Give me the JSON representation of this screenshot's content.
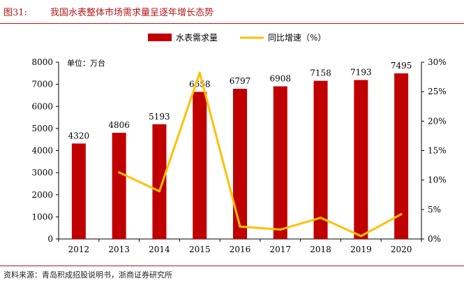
{
  "header": {
    "figure_no": "图31:",
    "title": "我国水表整体市场需求量呈逐年增长态势"
  },
  "source": "资料来源：青岛积成招股说明书，浙商证券研究所",
  "chart_data": {
    "type": "bar",
    "categories": [
      "2012",
      "2013",
      "2014",
      "2015",
      "2016",
      "2017",
      "2018",
      "2019",
      "2020"
    ],
    "series": [
      {
        "name": "水表需求量",
        "type": "bar",
        "axis": "left",
        "values": [
          4320,
          4806,
          5193,
          6658,
          6797,
          6908,
          7158,
          7193,
          7495
        ]
      },
      {
        "name": "同比增速（%）",
        "type": "line",
        "axis": "right",
        "values": [
          null,
          11.3,
          8.1,
          28.2,
          2.1,
          1.6,
          3.6,
          0.5,
          4.2
        ]
      }
    ],
    "unit_label": "单位：万台",
    "ylim": [
      0,
      8000
    ],
    "yticks": [
      "0",
      "1000",
      "2000",
      "3000",
      "4000",
      "5000",
      "6000",
      "7000",
      "8000"
    ],
    "y2lim": [
      0,
      30
    ],
    "y2ticks": [
      "0%",
      "5%",
      "10%",
      "15%",
      "20%",
      "25%",
      "30%"
    ],
    "legend_position": "top-center",
    "grid": false,
    "colors": {
      "bar": "#c00000",
      "line": "#ffc000",
      "axis": "#000000",
      "title": "#b5161b"
    }
  }
}
